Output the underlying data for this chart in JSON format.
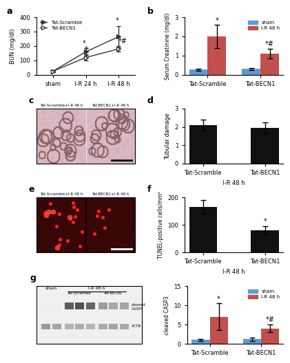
{
  "panel_a": {
    "xlabel_ticks": [
      "sham",
      "I-R 24 h",
      "I-R 48 h"
    ],
    "ylabel": "BUN (mg/dl)",
    "ylim": [
      0,
      400
    ],
    "yticks": [
      0,
      100,
      200,
      300,
      400
    ],
    "scramble_mean": [
      25,
      160,
      265
    ],
    "scramble_err": [
      5,
      25,
      75
    ],
    "becn1_mean": [
      25,
      120,
      180
    ],
    "becn1_err": [
      5,
      20,
      20
    ],
    "annotations_scramble": [
      "",
      "*",
      "*"
    ],
    "annotations_becn1": [
      "",
      "*",
      "*#"
    ]
  },
  "panel_b": {
    "ylabel": "Serum Creatinine (mg/dl)",
    "ylim": [
      0,
      3
    ],
    "yticks": [
      0,
      1,
      2,
      3
    ],
    "groups": [
      "Tat-Scramble",
      "Tat-BECN1"
    ],
    "sham_mean": [
      0.27,
      0.3
    ],
    "sham_err": [
      0.05,
      0.04
    ],
    "ir48_mean": [
      2.0,
      1.1
    ],
    "ir48_err": [
      0.6,
      0.25
    ],
    "sham_color": "#5b9bd5",
    "ir48_color": "#c0504d",
    "annotations_ir48": [
      "*",
      "*#"
    ]
  },
  "panel_d": {
    "ylabel": "Tubular damage",
    "ylim": [
      0,
      3
    ],
    "yticks": [
      0,
      1,
      2,
      3
    ],
    "groups": [
      "Tat-Scramble",
      "Tat-BECN1"
    ],
    "xlabel_group": "I-R 48 h",
    "mean": [
      2.1,
      1.95
    ],
    "err": [
      0.3,
      0.3
    ],
    "bar_color": "#111111"
  },
  "panel_f": {
    "ylabel": "TUNEL-positive cells/mm²",
    "ylim": [
      0,
      200
    ],
    "yticks": [
      0,
      100,
      200
    ],
    "groups": [
      "Tat-Scramble",
      "Tat-BECN1"
    ],
    "xlabel_group": "I-R 48 h",
    "mean": [
      165,
      80
    ],
    "err": [
      25,
      15
    ],
    "bar_color": "#111111",
    "annotations": [
      "",
      "*"
    ]
  },
  "panel_g_bar": {
    "ylabel": "cleaved CASP3",
    "ylim": [
      0,
      15
    ],
    "yticks": [
      0,
      5,
      10,
      15
    ],
    "groups": [
      "Tat-Scramble",
      "Tat-BECN1"
    ],
    "sham_mean": [
      1.0,
      1.2
    ],
    "sham_err": [
      0.3,
      0.4
    ],
    "ir48_mean": [
      7.0,
      4.0
    ],
    "ir48_err": [
      3.5,
      1.0
    ],
    "sham_color": "#5b9bd5",
    "ir48_color": "#c0504d",
    "annotations_ir48": [
      "*",
      "*#"
    ]
  },
  "colors": {
    "sham_blue": "#5b9bd5",
    "ir48_red": "#c0504d",
    "dark_gray": "#333333"
  }
}
